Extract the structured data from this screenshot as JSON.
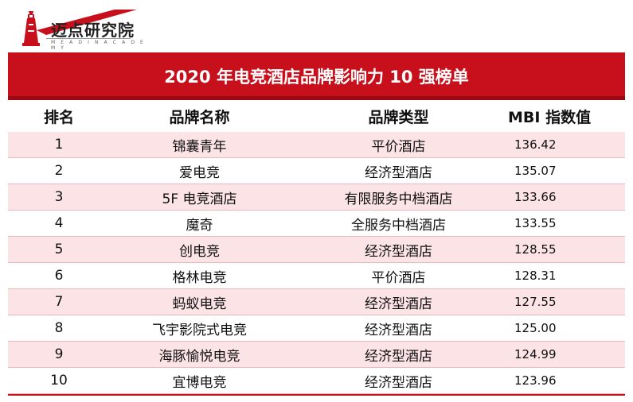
{
  "logo": {
    "name": "迈点研究院",
    "sub": "M E A D I N   A C A D E M Y",
    "icon": "lighthouse-icon",
    "brand_color": "#c8101c"
  },
  "table": {
    "title": "2020 年电竞酒店品牌影响力 10 强榜单",
    "headers": {
      "rank": "排名",
      "brand": "品牌名称",
      "type": "品牌类型",
      "mbi": "MBI 指数值"
    },
    "rows": [
      {
        "rank": "1",
        "brand": "锦囊青年",
        "type": "平价酒店",
        "mbi": "136.42"
      },
      {
        "rank": "2",
        "brand": "爱电竞",
        "type": "经济型酒店",
        "mbi": "135.07"
      },
      {
        "rank": "3",
        "brand": "5F 电竞酒店",
        "type": "有限服务中档酒店",
        "mbi": "133.66"
      },
      {
        "rank": "4",
        "brand": "魔奇",
        "type": "全服务中档酒店",
        "mbi": "133.55"
      },
      {
        "rank": "5",
        "brand": "创电竞",
        "type": "经济型酒店",
        "mbi": "128.55"
      },
      {
        "rank": "6",
        "brand": "格林电竞",
        "type": "平价酒店",
        "mbi": "128.31"
      },
      {
        "rank": "7",
        "brand": "蚂蚁电竞",
        "type": "经济型酒店",
        "mbi": "127.55"
      },
      {
        "rank": "8",
        "brand": "飞宇影院式电竞",
        "type": "经济型酒店",
        "mbi": "125.00"
      },
      {
        "rank": "9",
        "brand": "海豚愉悦电竞",
        "type": "经济型酒店",
        "mbi": "124.99"
      },
      {
        "rank": "10",
        "brand": "宜博电竞",
        "type": "经济型酒店",
        "mbi": "123.96"
      }
    ]
  }
}
